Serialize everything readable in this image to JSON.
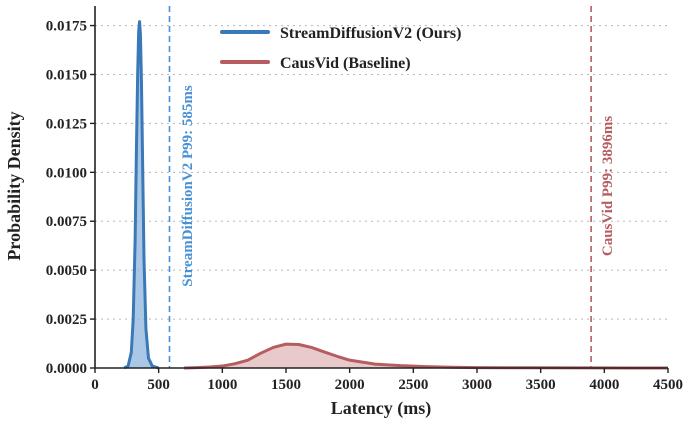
{
  "chart_data": {
    "type": "area",
    "xlabel": "Latency (ms)",
    "ylabel": "Probability Density",
    "xlim": [
      0,
      4500
    ],
    "ylim": [
      0,
      0.0185
    ],
    "x_ticks": [
      "0",
      "500",
      "1000",
      "1500",
      "2000",
      "2500",
      "3000",
      "3500",
      "4000",
      "4500"
    ],
    "y_ticks": [
      "0.0000",
      "0.0025",
      "0.0050",
      "0.0075",
      "0.0100",
      "0.0125",
      "0.0150",
      "0.0175"
    ],
    "grid": "y-dotted",
    "legend_position": "top-center",
    "series": [
      {
        "name": "StreamDiffusionV2 (Ours)",
        "color": "#3a78b8",
        "fill": "#8db5dc",
        "x": [
          230,
          260,
          285,
          300,
          315,
          325,
          335,
          343,
          350,
          357,
          365,
          375,
          385,
          400,
          420,
          450,
          500
        ],
        "y": [
          0.0,
          0.0001,
          0.0008,
          0.0025,
          0.0065,
          0.011,
          0.015,
          0.0172,
          0.0177,
          0.017,
          0.0145,
          0.01,
          0.0055,
          0.002,
          0.0005,
          0.0001,
          0.0
        ]
      },
      {
        "name": "CausVid (Baseline)",
        "color": "#b65d61",
        "fill": "#e2b8ba",
        "x": [
          700,
          800,
          900,
          1000,
          1100,
          1200,
          1300,
          1400,
          1500,
          1600,
          1700,
          1800,
          1900,
          2000,
          2200,
          2400,
          2600,
          2800,
          3000,
          3400,
          3900,
          4200,
          4500
        ],
        "y": [
          0.0,
          2e-05,
          5e-05,
          0.0001,
          0.00022,
          0.0004,
          0.00075,
          0.00105,
          0.00122,
          0.0012,
          0.00105,
          0.00082,
          0.0006,
          0.0004,
          0.0002,
          0.00012,
          7e-05,
          4e-05,
          2e-05,
          1e-05,
          5e-06,
          0.0,
          0.0
        ]
      }
    ],
    "reference_lines": [
      {
        "x": 585,
        "color": "#4a90d4",
        "label": "StreamDiffusionV2 P99: 585ms"
      },
      {
        "x": 3896,
        "color": "#b65d61",
        "label": "CausVid P99: 3896ms"
      }
    ]
  }
}
